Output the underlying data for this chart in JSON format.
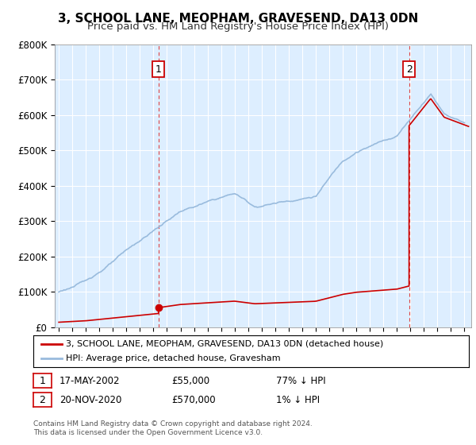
{
  "title": "3, SCHOOL LANE, MEOPHAM, GRAVESEND, DA13 0DN",
  "subtitle": "Price paid vs. HM Land Registry's House Price Index (HPI)",
  "title_fontsize": 11,
  "subtitle_fontsize": 9.5,
  "ylim": [
    0,
    800000
  ],
  "yticks": [
    0,
    100000,
    200000,
    300000,
    400000,
    500000,
    600000,
    700000,
    800000
  ],
  "ytick_labels": [
    "£0",
    "£100K",
    "£200K",
    "£300K",
    "£400K",
    "£500K",
    "£600K",
    "£700K",
    "£800K"
  ],
  "xlim_start": 1994.7,
  "xlim_end": 2025.5,
  "transaction1_date": 2002.37,
  "transaction1_price": 55000,
  "transaction2_date": 2020.9,
  "transaction2_price": 570000,
  "legend_line1": "3, SCHOOL LANE, MEOPHAM, GRAVESEND, DA13 0DN (detached house)",
  "legend_line2": "HPI: Average price, detached house, Gravesham",
  "footer1": "Contains HM Land Registry data © Crown copyright and database right 2024.",
  "footer2": "This data is licensed under the Open Government Licence v3.0.",
  "red_line_color": "#cc0000",
  "blue_line_color": "#99bbdd",
  "bg_color": "#ddeeff",
  "grid_color": "#ffffff",
  "box_color": "#cc0000",
  "annot1_date": "17-MAY-2002",
  "annot1_price": "£55,000",
  "annot1_hpi": "77% ↓ HPI",
  "annot2_date": "20-NOV-2020",
  "annot2_price": "£570,000",
  "annot2_hpi": "1% ↓ HPI"
}
